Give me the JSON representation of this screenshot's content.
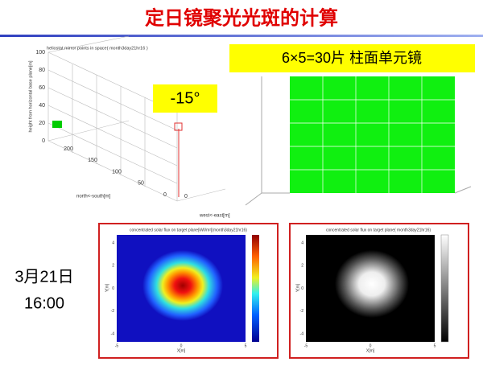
{
  "header": {
    "title": "定日镜聚光光斑的计算"
  },
  "plot3d": {
    "title": "heliostat mirror points in space( month3day21hr16 )",
    "z_label": "height from horizontal base plane[m]",
    "y_label": "north<-south[m]",
    "x_label": "west<-east[m]",
    "z_ticks": [
      "100",
      "80",
      "60",
      "40",
      "20",
      "0"
    ],
    "y_ticks": [
      "200",
      "150",
      "100",
      "50",
      "0"
    ],
    "x_ticks": [
      "0"
    ]
  },
  "angle_label": "-15°",
  "mirror_label": "6×5=30片  柱面单元镜",
  "datetime": {
    "date": "3月21日",
    "time": "16:00"
  },
  "flux_color": {
    "title": "concentrated solar flux on target plane[kW/m²](month3day21hr16)",
    "x_label": "X[m]",
    "y_label": "Y[m]",
    "x_ticks": [
      "-5",
      "0",
      "5"
    ],
    "y_ticks": [
      "4",
      "2",
      "0",
      "-2",
      "-4"
    ]
  },
  "flux_gray": {
    "title": "concentrated solar flux on target plane( month3day21hr16)",
    "x_label": "X[m]",
    "y_label": "Y[m]",
    "x_ticks": [
      "-5",
      "0",
      "5"
    ],
    "y_ticks": [
      "4",
      "2",
      "0",
      "-2",
      "-4"
    ]
  }
}
